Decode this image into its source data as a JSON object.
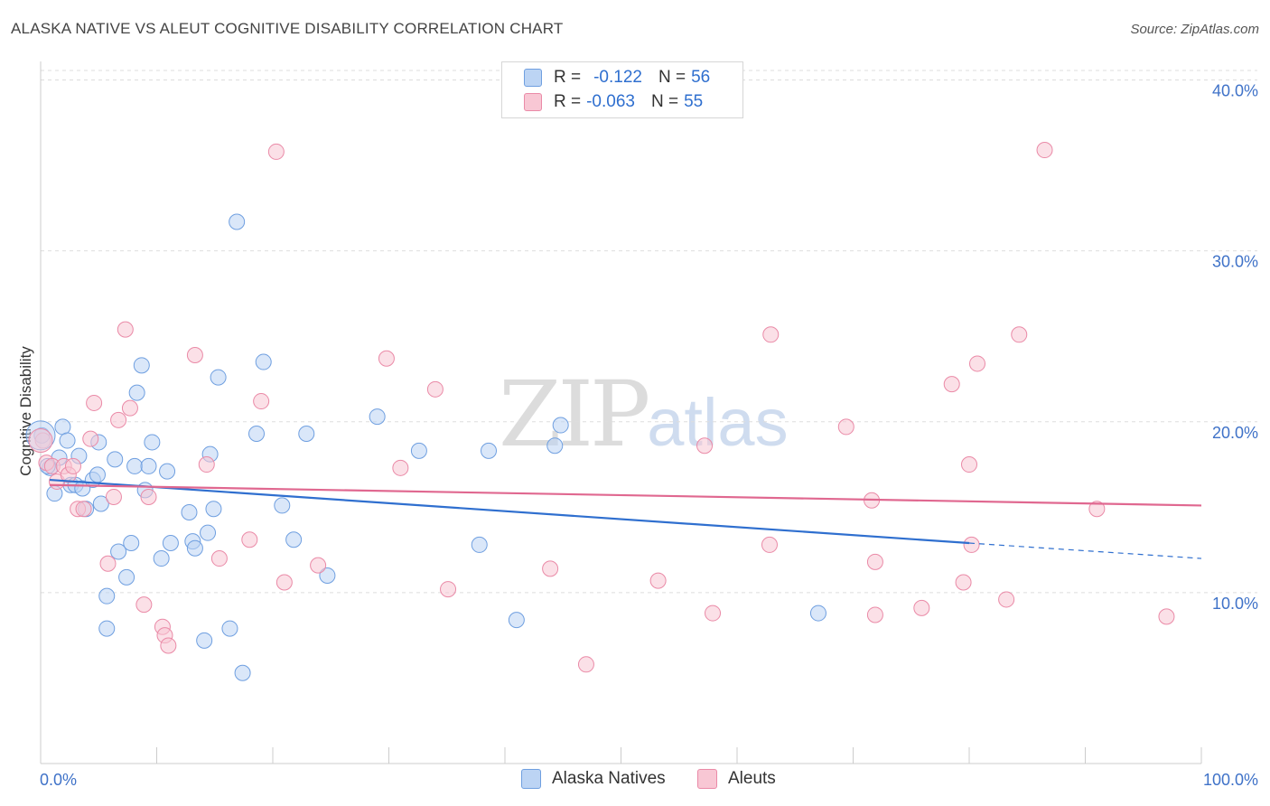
{
  "title": "ALASKA NATIVE VS ALEUT COGNITIVE DISABILITY CORRELATION CHART",
  "source": "Source: ZipAtlas.com",
  "watermark": {
    "zip": "ZIP",
    "atlas": "atlas"
  },
  "colors": {
    "blue_fill": "#bcd4f4",
    "blue_stroke": "#6f9fe0",
    "blue_line": "#2f6fcf",
    "pink_fill": "#f8c7d4",
    "pink_stroke": "#ea8aa7",
    "pink_line": "#e06890",
    "grid": "#dddddd",
    "axis_text": "#3f72c8"
  },
  "legend_top": [
    {
      "r_label": "R =",
      "r_value": "-0.122",
      "n_label": "N =",
      "n_value": "56"
    },
    {
      "r_label": "R =",
      "r_value": "-0.063",
      "n_label": "N =",
      "n_value": "55"
    }
  ],
  "legend_bottom": [
    "Alaska Natives",
    "Aleuts"
  ],
  "chart_data": {
    "type": "scatter",
    "title": "ALASKA NATIVE VS ALEUT COGNITIVE DISABILITY CORRELATION CHART",
    "xlabel": "",
    "ylabel": "Cognitive Disability",
    "xlim": [
      0,
      100
    ],
    "ylim": [
      0,
      40
    ],
    "x_tick_labels": [
      "0.0%",
      "100.0%"
    ],
    "y_ticks": [
      10,
      20,
      30,
      40
    ],
    "y_tick_labels": [
      "10.0%",
      "20.0%",
      "30.0%",
      "40.0%"
    ],
    "grid": true,
    "series": [
      {
        "name": "Alaska Natives",
        "r": -0.122,
        "n": 56,
        "trend": {
          "x0": 0,
          "y0": 16.6,
          "x1": 80,
          "y1": 12.9,
          "dash_x1": 100,
          "dash_y1": 12.0
        },
        "points": [
          [
            0.1,
            19.2
          ],
          [
            0.8,
            17.3
          ],
          [
            1.2,
            15.8
          ],
          [
            1.6,
            17.9
          ],
          [
            1.9,
            19.7
          ],
          [
            2.3,
            18.9
          ],
          [
            2.6,
            16.3
          ],
          [
            3.0,
            16.3
          ],
          [
            3.3,
            18.0
          ],
          [
            3.6,
            16.1
          ],
          [
            3.9,
            14.9
          ],
          [
            4.5,
            16.6
          ],
          [
            4.9,
            16.9
          ],
          [
            5.0,
            18.8
          ],
          [
            5.2,
            15.2
          ],
          [
            5.7,
            9.8
          ],
          [
            5.7,
            7.9
          ],
          [
            6.4,
            17.8
          ],
          [
            6.7,
            12.4
          ],
          [
            7.4,
            10.9
          ],
          [
            7.8,
            12.9
          ],
          [
            8.1,
            17.4
          ],
          [
            8.3,
            21.7
          ],
          [
            8.7,
            23.3
          ],
          [
            9.0,
            16.0
          ],
          [
            9.3,
            17.4
          ],
          [
            9.6,
            18.8
          ],
          [
            10.4,
            12.0
          ],
          [
            10.9,
            17.1
          ],
          [
            11.2,
            12.9
          ],
          [
            12.8,
            14.7
          ],
          [
            13.1,
            13.0
          ],
          [
            13.3,
            12.6
          ],
          [
            14.1,
            7.2
          ],
          [
            14.4,
            13.5
          ],
          [
            14.6,
            18.1
          ],
          [
            14.9,
            14.9
          ],
          [
            15.3,
            22.6
          ],
          [
            16.3,
            7.9
          ],
          [
            16.9,
            31.7
          ],
          [
            17.4,
            5.3
          ],
          [
            18.6,
            19.3
          ],
          [
            19.2,
            23.5
          ],
          [
            20.8,
            15.1
          ],
          [
            21.8,
            13.1
          ],
          [
            22.9,
            19.3
          ],
          [
            24.7,
            11.0
          ],
          [
            29.0,
            20.3
          ],
          [
            32.6,
            18.3
          ],
          [
            37.8,
            12.8
          ],
          [
            38.6,
            18.3
          ],
          [
            41.0,
            8.4
          ],
          [
            44.3,
            18.6
          ],
          [
            44.8,
            19.8
          ],
          [
            67.0,
            8.8
          ],
          [
            0.6,
            17.4
          ]
        ]
      },
      {
        "name": "Aleuts",
        "r": -0.063,
        "n": 55,
        "trend": {
          "x0": 0,
          "y0": 16.3,
          "x1": 100,
          "y1": 15.1
        },
        "points": [
          [
            0.2,
            18.9
          ],
          [
            0.5,
            17.6
          ],
          [
            1.0,
            17.4
          ],
          [
            1.4,
            16.5
          ],
          [
            2.0,
            17.4
          ],
          [
            2.4,
            16.9
          ],
          [
            2.8,
            17.4
          ],
          [
            3.2,
            14.9
          ],
          [
            3.7,
            14.9
          ],
          [
            4.3,
            19.0
          ],
          [
            4.6,
            21.1
          ],
          [
            5.8,
            11.7
          ],
          [
            6.3,
            15.6
          ],
          [
            6.7,
            20.1
          ],
          [
            7.3,
            25.4
          ],
          [
            7.7,
            20.8
          ],
          [
            8.9,
            9.3
          ],
          [
            9.3,
            15.6
          ],
          [
            10.5,
            8.0
          ],
          [
            10.7,
            7.5
          ],
          [
            11.0,
            6.9
          ],
          [
            13.3,
            23.9
          ],
          [
            14.3,
            17.5
          ],
          [
            15.4,
            12.0
          ],
          [
            18.0,
            13.1
          ],
          [
            19.0,
            21.2
          ],
          [
            20.3,
            35.8
          ],
          [
            21.0,
            10.6
          ],
          [
            23.9,
            11.6
          ],
          [
            29.8,
            23.7
          ],
          [
            31.0,
            17.3
          ],
          [
            34.0,
            21.9
          ],
          [
            35.1,
            10.2
          ],
          [
            43.9,
            11.4
          ],
          [
            47.0,
            5.8
          ],
          [
            53.2,
            10.7
          ],
          [
            57.2,
            18.6
          ],
          [
            57.9,
            8.8
          ],
          [
            62.8,
            12.8
          ],
          [
            62.9,
            25.1
          ],
          [
            69.4,
            19.7
          ],
          [
            71.6,
            15.4
          ],
          [
            71.9,
            8.7
          ],
          [
            71.9,
            11.8
          ],
          [
            75.9,
            9.1
          ],
          [
            78.5,
            22.2
          ],
          [
            79.5,
            10.6
          ],
          [
            80.0,
            17.5
          ],
          [
            80.2,
            12.8
          ],
          [
            80.7,
            23.4
          ],
          [
            83.2,
            9.6
          ],
          [
            84.3,
            25.1
          ],
          [
            86.5,
            35.9
          ],
          [
            91.0,
            14.9
          ],
          [
            97.0,
            8.6
          ]
        ]
      }
    ]
  }
}
